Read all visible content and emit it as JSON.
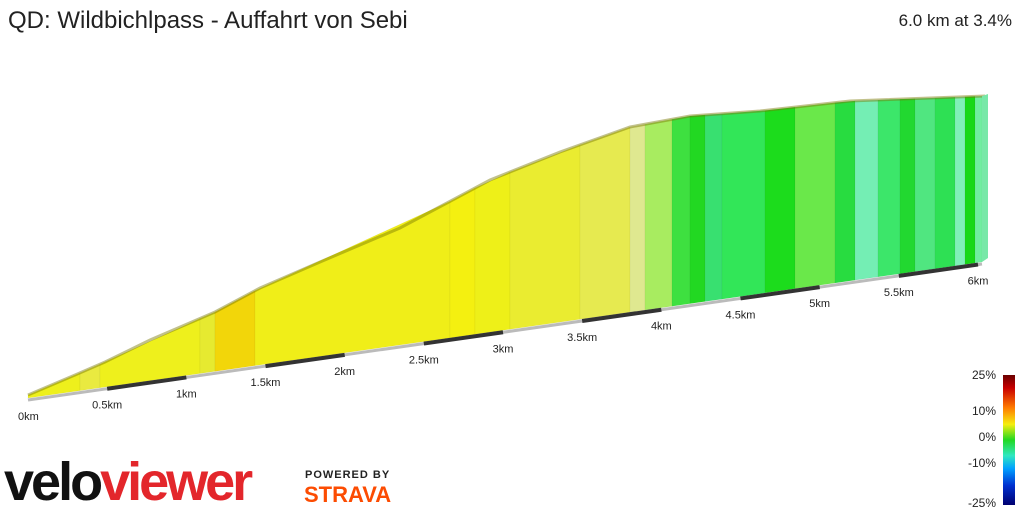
{
  "header": {
    "title": "QD: Wildbichlpass - Auffahrt von Sebi",
    "summary": "6.0 km at 3.4%"
  },
  "distance_labels": [
    "0km",
    "0.5km",
    "1km",
    "1.5km",
    "2km",
    "2.5km",
    "3km",
    "3.5km",
    "4km",
    "4.5km",
    "5km",
    "5.5km",
    "6km"
  ],
  "legend": {
    "labels": [
      "25%",
      "10%",
      "0%",
      "-10%",
      "-25%"
    ]
  },
  "branding": {
    "logo_velo": "velo",
    "logo_viewer": "viewer",
    "powered_by": "POWERED BY",
    "strava": "STRAVA"
  }
}
